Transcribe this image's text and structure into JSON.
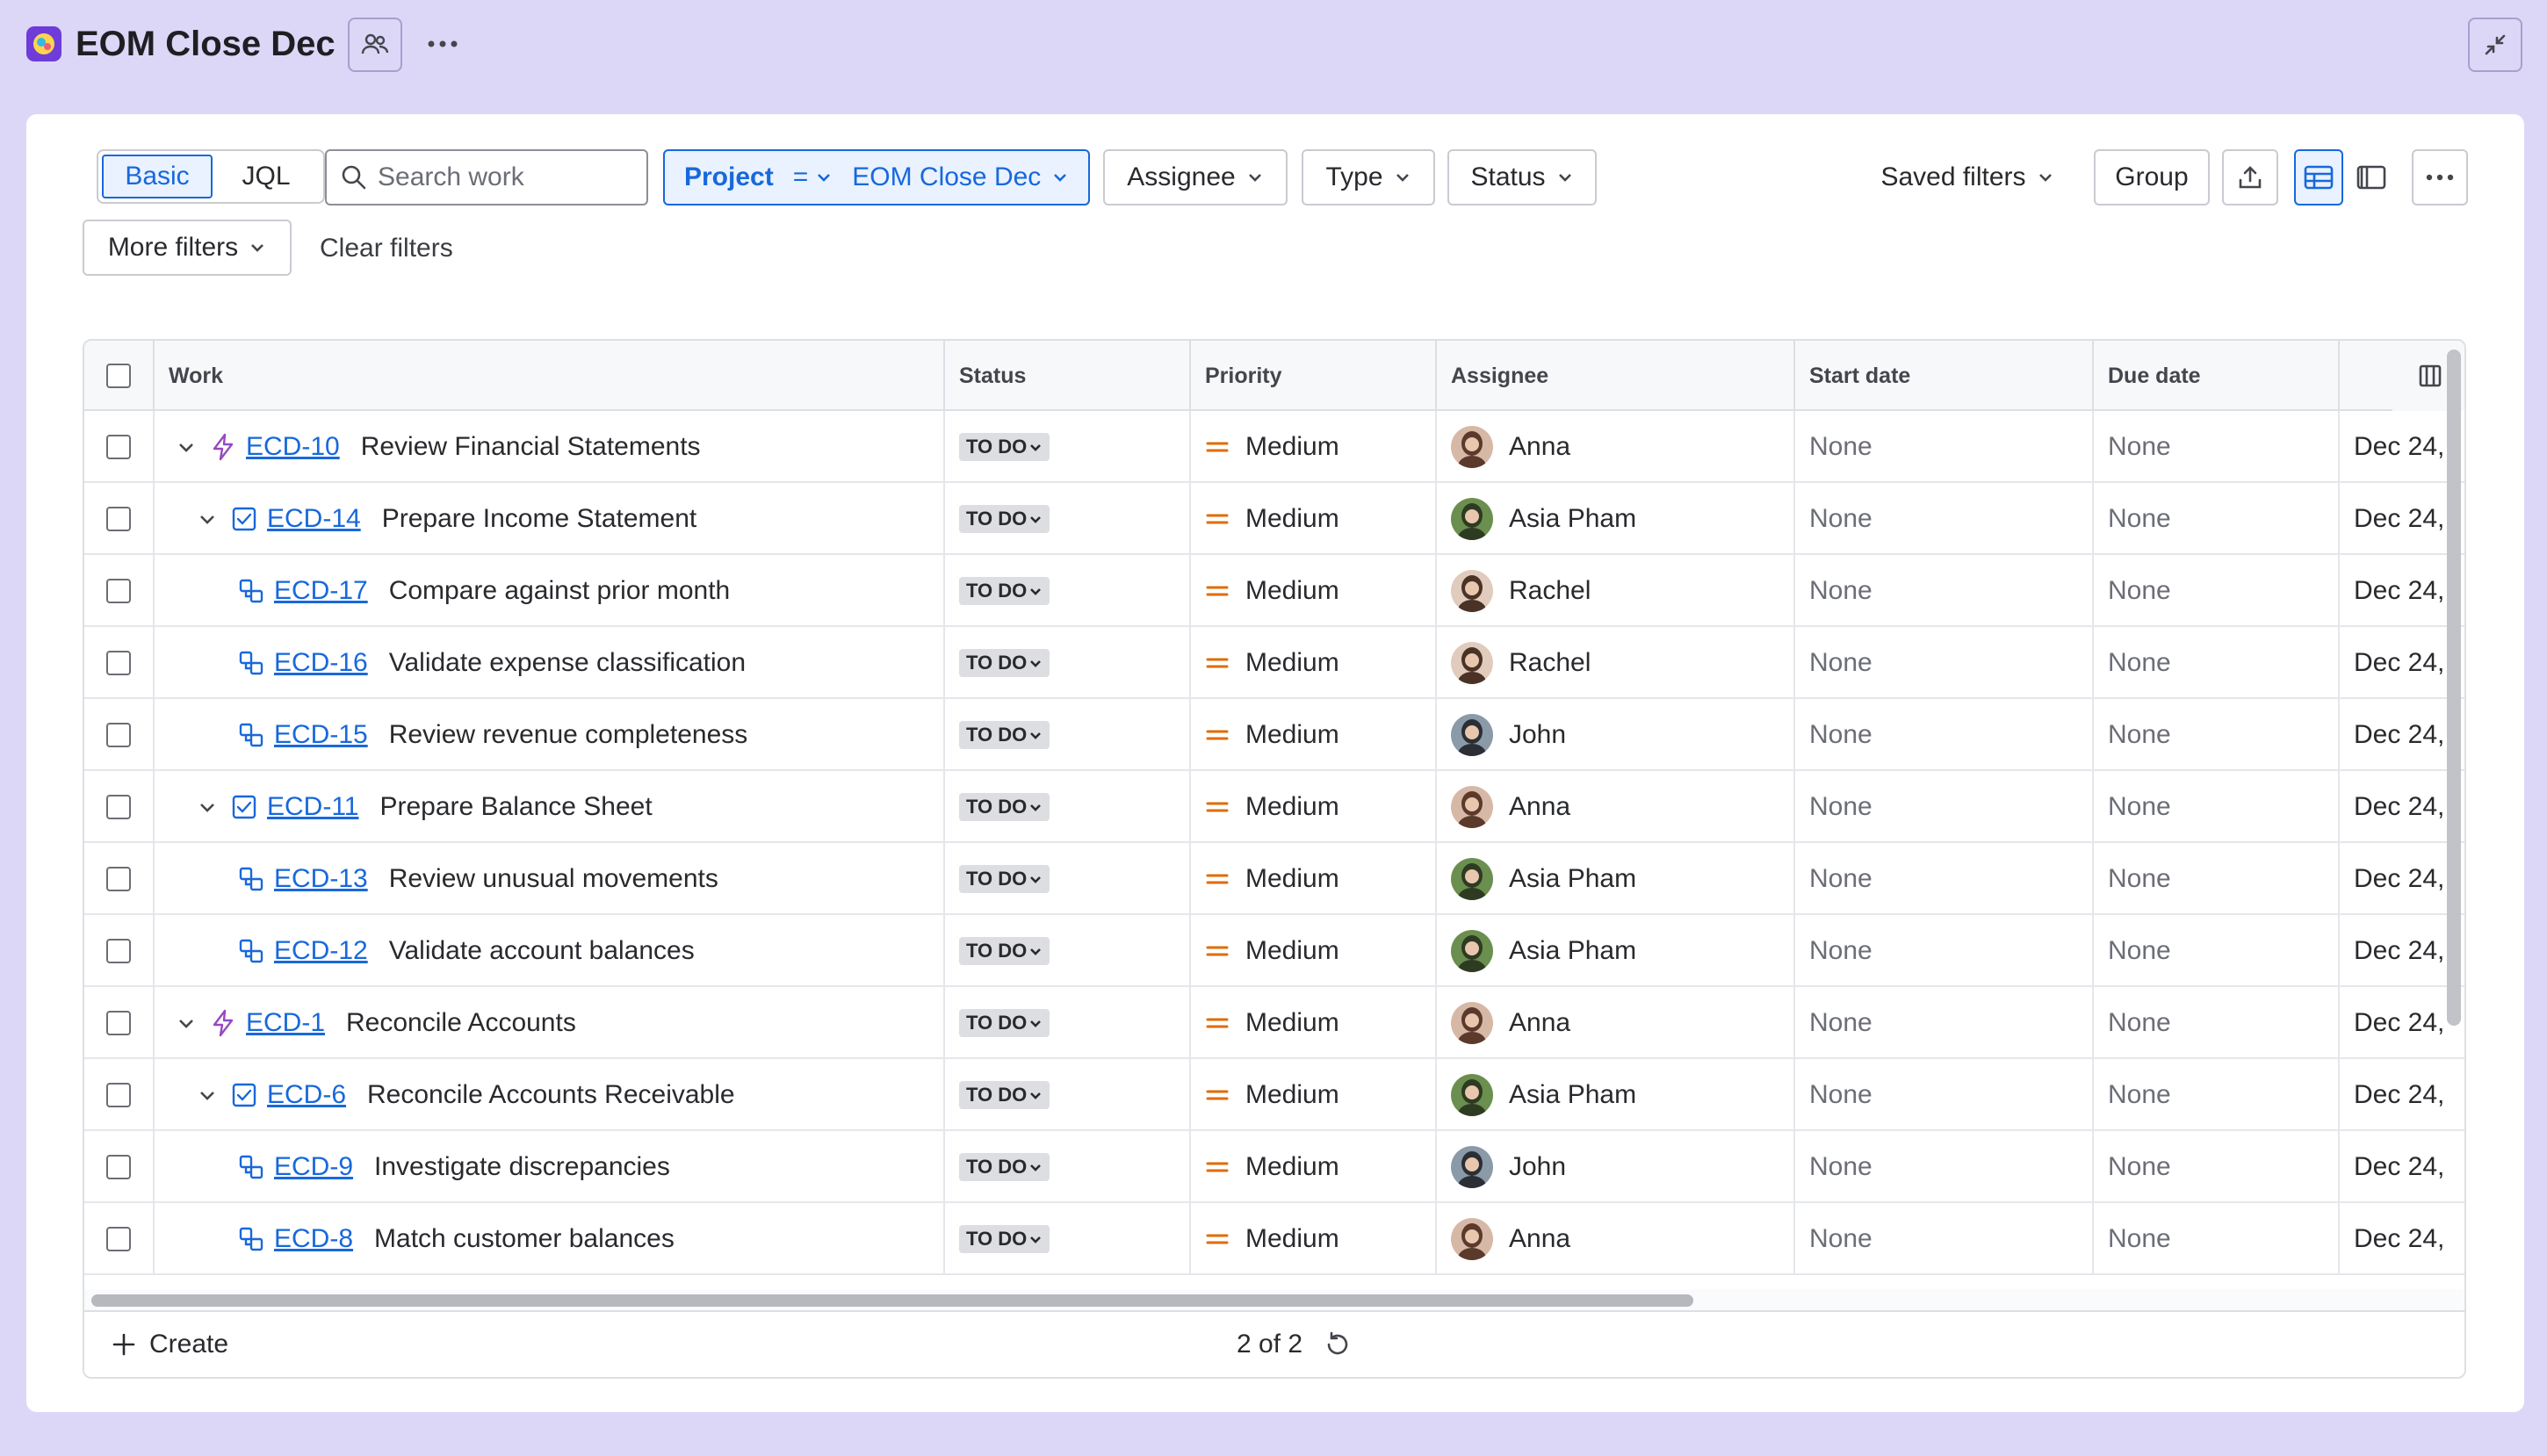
{
  "header": {
    "title": "EOM Close Dec",
    "logo_icon": "project-avatar-icon",
    "share_icon": "people-icon",
    "more_icon": "more-horizontal-icon",
    "minimize_icon": "minimize-icon"
  },
  "filters": {
    "mode": {
      "basic": "Basic",
      "jql": "JQL",
      "selected": "Basic"
    },
    "search": {
      "placeholder": "Search work",
      "value": ""
    },
    "project": {
      "label": "Project",
      "operator": "=",
      "value": "EOM Close Dec"
    },
    "assignee": "Assignee",
    "type": "Type",
    "status": "Status",
    "saved_filters": "Saved filters",
    "group": "Group",
    "more_filters": "More filters",
    "clear_filters": "Clear filters"
  },
  "table": {
    "columns": {
      "work": "Work",
      "status": "Status",
      "priority": "Priority",
      "assignee": "Assignee",
      "start_date": "Start date",
      "due_date": "Due date",
      "created": ""
    },
    "rows": [
      {
        "key": "ECD-10",
        "summary": "Review Financial Statements",
        "type": "epic",
        "level": 0,
        "expandable": true,
        "status": "TO DO",
        "priority": "Medium",
        "assignee": "Anna",
        "start": "None",
        "due": "None",
        "created": "Dec 24,"
      },
      {
        "key": "ECD-14",
        "summary": "Prepare Income Statement",
        "type": "task",
        "level": 1,
        "expandable": true,
        "status": "TO DO",
        "priority": "Medium",
        "assignee": "Asia Pham",
        "start": "None",
        "due": "None",
        "created": "Dec 24,"
      },
      {
        "key": "ECD-17",
        "summary": "Compare against prior month",
        "type": "subtask",
        "level": 2,
        "expandable": false,
        "status": "TO DO",
        "priority": "Medium",
        "assignee": "Rachel",
        "start": "None",
        "due": "None",
        "created": "Dec 24,"
      },
      {
        "key": "ECD-16",
        "summary": "Validate expense classification",
        "type": "subtask",
        "level": 2,
        "expandable": false,
        "status": "TO DO",
        "priority": "Medium",
        "assignee": "Rachel",
        "start": "None",
        "due": "None",
        "created": "Dec 24,"
      },
      {
        "key": "ECD-15",
        "summary": "Review revenue completeness",
        "type": "subtask",
        "level": 2,
        "expandable": false,
        "status": "TO DO",
        "priority": "Medium",
        "assignee": "John",
        "start": "None",
        "due": "None",
        "created": "Dec 24,"
      },
      {
        "key": "ECD-11",
        "summary": "Prepare Balance Sheet",
        "type": "task",
        "level": 1,
        "expandable": true,
        "status": "TO DO",
        "priority": "Medium",
        "assignee": "Anna",
        "start": "None",
        "due": "None",
        "created": "Dec 24,"
      },
      {
        "key": "ECD-13",
        "summary": "Review unusual movements",
        "type": "subtask",
        "level": 2,
        "expandable": false,
        "status": "TO DO",
        "priority": "Medium",
        "assignee": "Asia Pham",
        "start": "None",
        "due": "None",
        "created": "Dec 24,"
      },
      {
        "key": "ECD-12",
        "summary": "Validate account balances",
        "type": "subtask",
        "level": 2,
        "expandable": false,
        "status": "TO DO",
        "priority": "Medium",
        "assignee": "Asia Pham",
        "start": "None",
        "due": "None",
        "created": "Dec 24,"
      },
      {
        "key": "ECD-1",
        "summary": "Reconcile Accounts",
        "type": "epic",
        "level": 0,
        "expandable": true,
        "status": "TO DO",
        "priority": "Medium",
        "assignee": "Anna",
        "start": "None",
        "due": "None",
        "created": "Dec 24,"
      },
      {
        "key": "ECD-6",
        "summary": "Reconcile Accounts Receivable",
        "type": "task",
        "level": 1,
        "expandable": true,
        "status": "TO DO",
        "priority": "Medium",
        "assignee": "Asia Pham",
        "start": "None",
        "due": "None",
        "created": "Dec 24,"
      },
      {
        "key": "ECD-9",
        "summary": "Investigate discrepancies",
        "type": "subtask",
        "level": 2,
        "expandable": false,
        "status": "TO DO",
        "priority": "Medium",
        "assignee": "John",
        "start": "None",
        "due": "None",
        "created": "Dec 24,"
      },
      {
        "key": "ECD-8",
        "summary": "Match customer balances",
        "type": "subtask",
        "level": 2,
        "expandable": false,
        "status": "TO DO",
        "priority": "Medium",
        "assignee": "Anna",
        "start": "None",
        "due": "None",
        "created": "Dec 24,"
      }
    ]
  },
  "footer": {
    "create": "Create",
    "pagination": "2 of 2"
  },
  "colors": {
    "background": "#dcd7f7",
    "link": "#1868db",
    "epic": "#964ac0",
    "task": "#1868db",
    "subtask": "#1868db",
    "priority_medium": "#e06c00",
    "lozenge": "#dddee1"
  }
}
